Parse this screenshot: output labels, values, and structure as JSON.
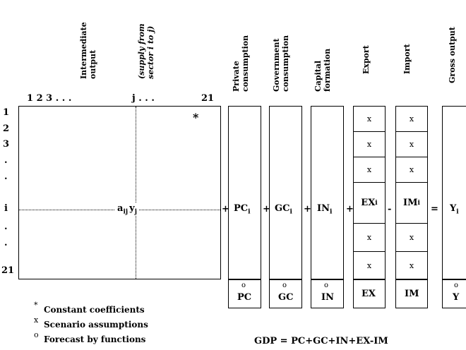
{
  "headers": {
    "intermediate": [
      "Intermediate",
      "output"
    ],
    "supply": [
      "(supply from",
      "sector i to j)"
    ],
    "private": [
      "Private",
      "consumption"
    ],
    "government": [
      "Government",
      "consumption"
    ],
    "capital": [
      "Capital",
      "formation"
    ],
    "export": "Export",
    "import": "Import",
    "gross": "Gross output"
  },
  "column_index": {
    "start": "1 2 3 . . .",
    "mid": "j . . .",
    "end": "21"
  },
  "row_index": [
    "1",
    "2",
    "3",
    ".",
    ".",
    "i",
    ".",
    ".",
    "21"
  ],
  "matrix": {
    "star": "*",
    "element": "a",
    "element_sub": "ij",
    "element_y": "y",
    "element_y_sub": "j"
  },
  "vectors": {
    "pc": {
      "main": "PC",
      "sub": "i",
      "total": "PC",
      "marker": "o"
    },
    "gc": {
      "main": "GC",
      "sub": "i",
      "total": "GC",
      "marker": "o"
    },
    "in": {
      "main": "IN",
      "sub": "i",
      "total": "IN",
      "marker": "o"
    },
    "ex": {
      "main": "EX",
      "sub": "i",
      "total": "EX",
      "marker": "x"
    },
    "im": {
      "main": "IM",
      "sub": "i",
      "total": "IM",
      "marker": "x"
    },
    "y": {
      "main": "Y",
      "sub": "i",
      "total": "Y",
      "marker": "o"
    }
  },
  "operators": [
    "+",
    "+",
    "+",
    "+",
    "+",
    "-",
    "="
  ],
  "legend": [
    {
      "mark": "*",
      "text": "Constant coefficients"
    },
    {
      "mark": "x",
      "text": "Scenario assumptions"
    },
    {
      "mark": "o",
      "text": "Forecast by functions"
    }
  ],
  "gdp_equation": "GDP = PC+GC+IN+EX-IM"
}
